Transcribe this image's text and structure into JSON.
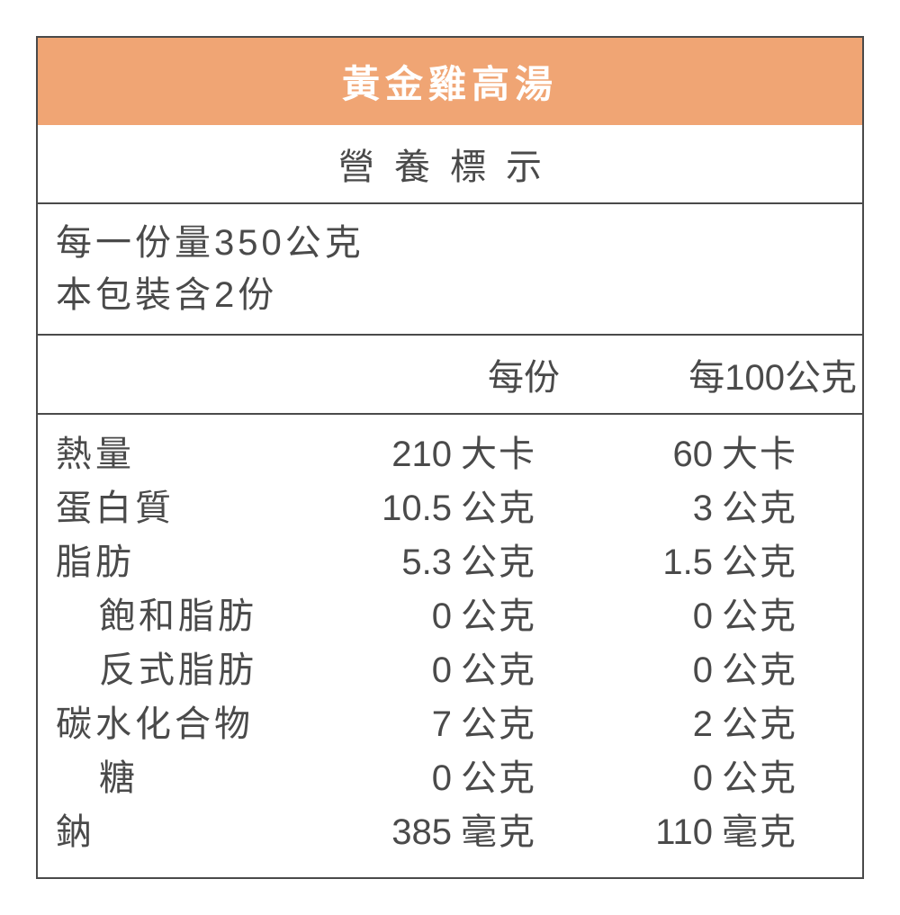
{
  "header": {
    "title": "黃金雞高湯",
    "bg_color": "#f0a574",
    "text_color": "#ffffff"
  },
  "section_title": "營養標示",
  "serving": {
    "line1": "每一份量350公克",
    "line2": "本包裝含2份"
  },
  "columns": {
    "per_serving": "每份",
    "per_100g": "每100公克"
  },
  "rows": [
    {
      "name": "熱量",
      "indent": false,
      "v1": "210",
      "u1": "大卡",
      "v2": "60",
      "u2": "大卡"
    },
    {
      "name": "蛋白質",
      "indent": false,
      "v1": "10.5",
      "u1": "公克",
      "v2": "3",
      "u2": "公克"
    },
    {
      "name": "脂肪",
      "indent": false,
      "v1": "5.3",
      "u1": "公克",
      "v2": "1.5",
      "u2": "公克"
    },
    {
      "name": "飽和脂肪",
      "indent": true,
      "v1": "0",
      "u1": "公克",
      "v2": "0",
      "u2": "公克"
    },
    {
      "name": "反式脂肪",
      "indent": true,
      "v1": "0",
      "u1": "公克",
      "v2": "0",
      "u2": "公克"
    },
    {
      "name": "碳水化合物",
      "indent": false,
      "v1": "7",
      "u1": "公克",
      "v2": "2",
      "u2": "公克"
    },
    {
      "name": "糖",
      "indent": true,
      "v1": "0",
      "u1": "公克",
      "v2": "0",
      "u2": "公克"
    },
    {
      "name": "鈉",
      "indent": false,
      "v1": "385",
      "u1": "毫克",
      "v2": "110",
      "u2": "毫克"
    }
  ],
  "style": {
    "border_color": "#4a4a4a",
    "text_color": "#4a4a4a",
    "background_color": "#ffffff",
    "font_size_main": 40,
    "font_size_header": 42
  }
}
